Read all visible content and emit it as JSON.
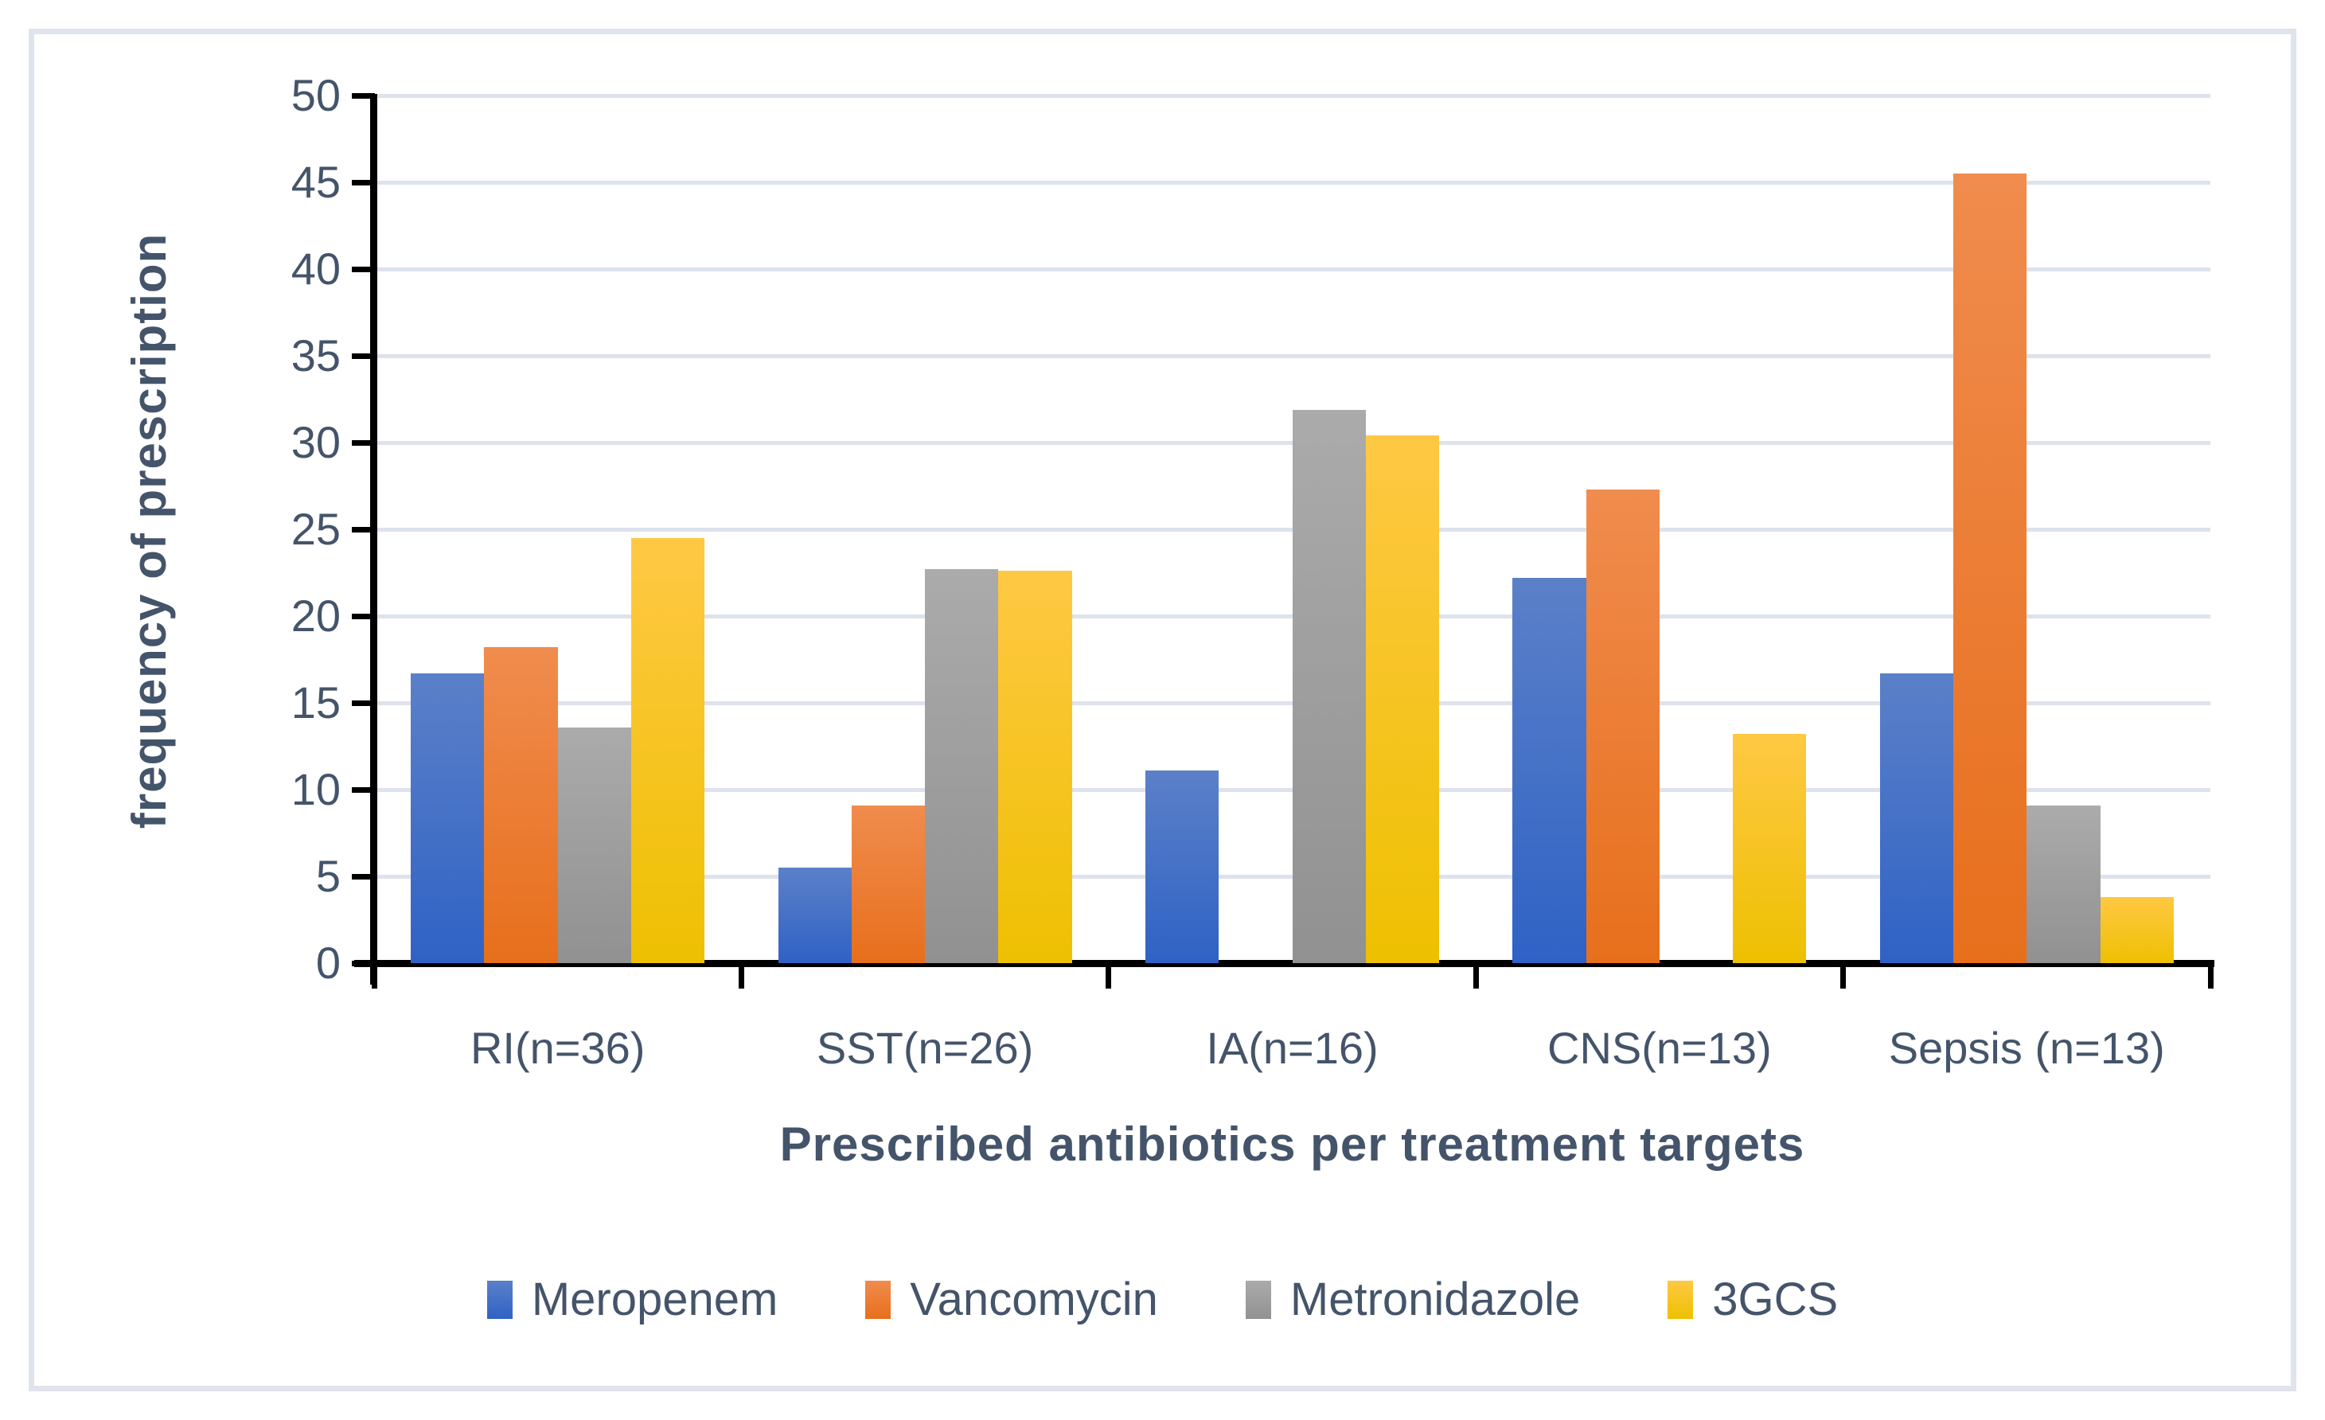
{
  "chart_data": {
    "type": "bar",
    "title": "",
    "xlabel": "Prescribed antibiotics per treatment targets",
    "ylabel": "frequency of prescription",
    "categories": [
      "RI(n=36)",
      "SST(n=26)",
      "IA(n=16)",
      "CNS(n=13)",
      "Sepsis (n=13)"
    ],
    "series": [
      {
        "name": "Meropenem",
        "color_top": "#5b80c8",
        "color_bottom": "#2f62c5",
        "values": [
          16.7,
          5.5,
          11.1,
          22.2,
          16.7
        ]
      },
      {
        "name": "Vancomycin",
        "color_top": "#f08c4e",
        "color_bottom": "#e76f1c",
        "values": [
          18.2,
          9.1,
          0,
          27.3,
          45.5
        ]
      },
      {
        "name": "Metronidazole",
        "color_top": "#ababab",
        "color_bottom": "#919191",
        "values": [
          13.6,
          22.7,
          31.9,
          0,
          9.1
        ]
      },
      {
        "name": "3GCS",
        "color_top": "#ffc844",
        "color_bottom": "#eec001",
        "values": [
          24.5,
          22.6,
          30.4,
          13.2,
          3.8
        ]
      }
    ],
    "ylim": [
      0,
      50
    ],
    "ytick_step": 5,
    "ytick_labels": [
      "0",
      "5",
      "10",
      "15",
      "20",
      "25",
      "30",
      "35",
      "40",
      "45",
      "50"
    ],
    "grid": true,
    "legend_position": "bottom"
  },
  "styles": {
    "text_color": "#44546A",
    "gridline_color": "#dde2ec",
    "axis_color": "#000000",
    "frame_border_color": "#dfe3eb",
    "background": "#ffffff"
  }
}
